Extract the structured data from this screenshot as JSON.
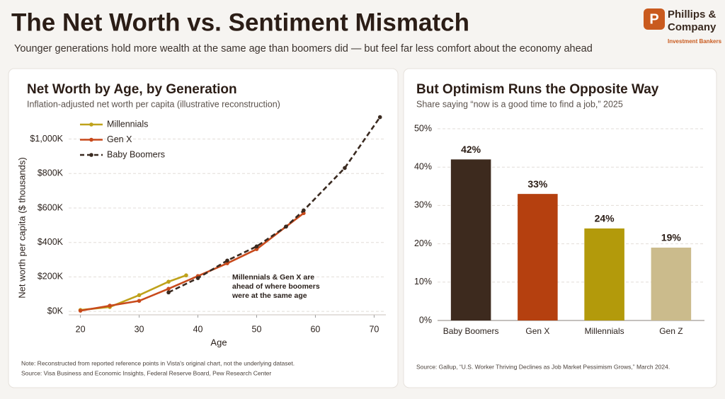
{
  "header": {
    "title": "The Net Worth vs. Sentiment Mismatch",
    "subtitle": "Younger generations hold more wealth at the same age than boomers did — but feel far less comfort about the economy ahead"
  },
  "logo": {
    "mark": "P",
    "name_line1": "Phillips &",
    "name_line2": "Company",
    "tagline": "Investment Bankers"
  },
  "chart_data": [
    {
      "type": "line",
      "title": "Net Worth by Age, by Generation",
      "subtitle": "Inflation-adjusted net worth per capita (illustrative reconstruction)",
      "x_label": "Age",
      "y_label": "Net worth per capita ($ thousands)",
      "xlim": [
        18,
        72
      ],
      "xticks": [
        20,
        30,
        40,
        50,
        60,
        70
      ],
      "ylim": [
        -20,
        1150
      ],
      "yticks": [
        {
          "value": 0,
          "label": "$0K"
        },
        {
          "value": 200,
          "label": "$200K"
        },
        {
          "value": 400,
          "label": "$400K"
        },
        {
          "value": 600,
          "label": "$600K"
        },
        {
          "value": 800,
          "label": "$800K"
        },
        {
          "value": 1000,
          "label": "$1,000K"
        }
      ],
      "grid": true,
      "legend": "top-left",
      "series": [
        {
          "name": "Millennials",
          "color": "#bfa21b",
          "dashed": false,
          "x": [
            20,
            25,
            30,
            35,
            38
          ],
          "values": [
            8,
            25,
            94,
            172,
            209
          ]
        },
        {
          "name": "Gen X",
          "color": "#c84a1c",
          "dashed": false,
          "x": [
            20,
            25,
            30,
            35,
            40,
            45,
            50,
            55,
            58
          ],
          "values": [
            4,
            33,
            61,
            131,
            205,
            279,
            361,
            492,
            570
          ]
        },
        {
          "name": "Baby Boomers",
          "color": "#3a2a20",
          "dashed": true,
          "x": [
            35,
            40,
            45,
            50,
            55,
            58,
            65,
            71
          ],
          "values": [
            110,
            193,
            295,
            377,
            492,
            586,
            832,
            1127
          ]
        }
      ],
      "annotation": "Millennials & Gen X are ahead of where boomers were at the same age",
      "note": "Note: Reconstructed from reported reference points in Vista's original chart, not the underlying dataset.",
      "source": "Source:  Visa Business and Economic Insights, Federal Reserve Board, Pew Research Center"
    },
    {
      "type": "bar",
      "title": "But Optimism Runs the Opposite Way",
      "subtitle": "Share saying “now is a good time to find a job,” 2025",
      "categories": [
        "Baby Boomers",
        "Gen X",
        "Millennials",
        "Gen Z"
      ],
      "values": [
        42,
        33,
        24,
        19
      ],
      "value_labels": [
        "42%",
        "33%",
        "24%",
        "19%"
      ],
      "colors": [
        "#3d2a1e",
        "#b5400f",
        "#b39a0b",
        "#cbbb8c"
      ],
      "ylim": [
        0,
        50
      ],
      "yticks": [
        {
          "value": 0,
          "label": "0%"
        },
        {
          "value": 10,
          "label": "10%"
        },
        {
          "value": 20,
          "label": "20%"
        },
        {
          "value": 30,
          "label": "30%"
        },
        {
          "value": 40,
          "label": "40%"
        },
        {
          "value": 50,
          "label": "50%"
        }
      ],
      "grid": true,
      "source": "Source: Gallup, “U.S. Worker Thriving Declines as Job Market Pessimism Grows,” March 2024."
    }
  ]
}
